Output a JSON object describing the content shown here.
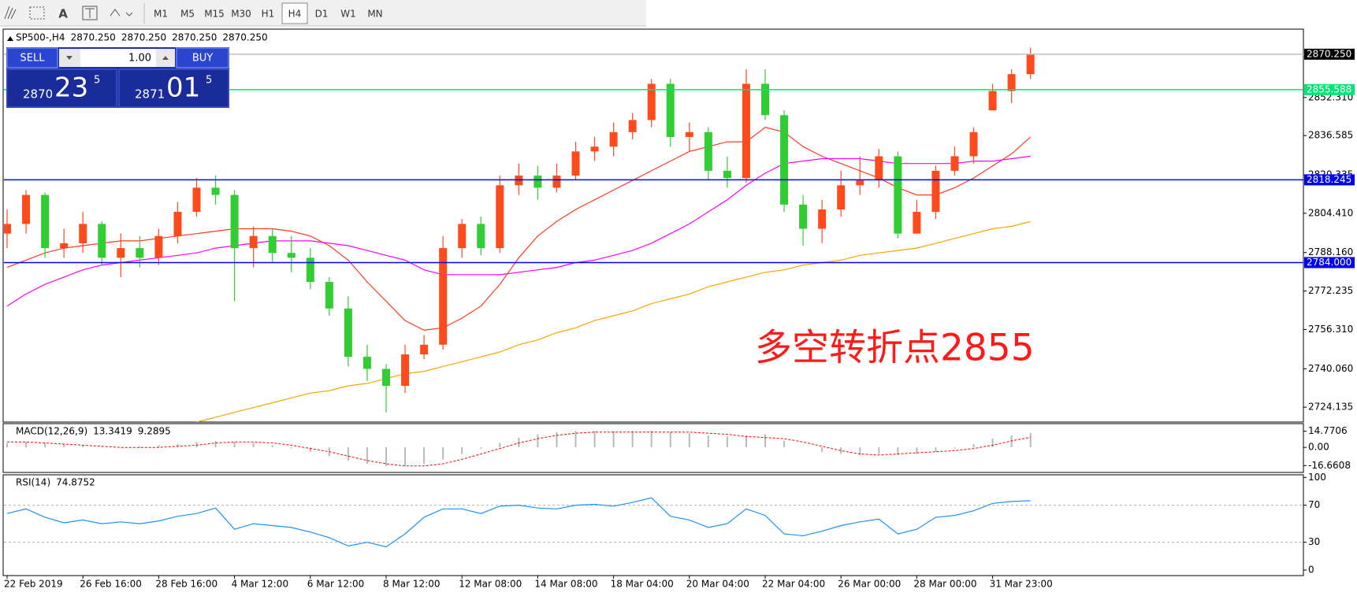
{
  "toolbar": {
    "text_tool": "A",
    "timeframes": [
      "M1",
      "M5",
      "M15",
      "M30",
      "H1",
      "H4",
      "D1",
      "W1",
      "MN"
    ],
    "active": "H4"
  },
  "trade_panel": {
    "sell_label": "SELL",
    "buy_label": "BUY",
    "lot": "1.00",
    "sell_price": [
      "2870",
      "23",
      "5"
    ],
    "buy_price": [
      "2871",
      "01",
      "5"
    ]
  },
  "chart_data": [
    {
      "type": "candlestick",
      "title": "SP500-,H4",
      "header_values": [
        "2870.250",
        "2870.250",
        "2870.250",
        "2870.250"
      ],
      "categories": [
        "22 Feb 2019",
        null,
        null,
        null,
        "26 Feb 16:00",
        null,
        null,
        null,
        "28 Feb 16:00",
        null,
        null,
        null,
        "4 Mar 12:00",
        null,
        null,
        null,
        "6 Mar 12:00",
        null,
        null,
        null,
        "8 Mar 12:00",
        null,
        null,
        null,
        "12 Mar 08:00",
        null,
        null,
        null,
        "14 Mar 08:00",
        null,
        null,
        null,
        "18 Mar 04:00",
        null,
        null,
        null,
        "20 Mar 04:00",
        null,
        null,
        null,
        "22 Mar 04:00",
        null,
        null,
        null,
        "26 Mar 00:00",
        null,
        null,
        null,
        "28 Mar 00:00",
        null,
        null,
        null,
        "31 Mar 23:00",
        null,
        null
      ],
      "open": [
        2796,
        2800,
        2812,
        2790,
        2792,
        2800,
        2786,
        2790,
        2786,
        2795,
        2805,
        2815,
        2812,
        2790,
        2795,
        2788,
        2786,
        2776,
        2765,
        2745,
        2740,
        2733,
        2746,
        2750,
        2790,
        2800,
        2790,
        2816,
        2820,
        2815,
        2820,
        2830,
        2832,
        2838,
        2843,
        2858,
        2836,
        2838,
        2822,
        2819,
        2858,
        2845,
        2808,
        2798,
        2806,
        2816,
        2818,
        2828,
        2796,
        2805,
        2822,
        2828,
        2847,
        2855,
        2862
      ],
      "high": [
        2806,
        2814,
        2813,
        2798,
        2805,
        2801,
        2796,
        2795,
        2798,
        2809,
        2819,
        2820,
        2814,
        2799,
        2798,
        2795,
        2790,
        2778,
        2770,
        2750,
        2742,
        2750,
        2754,
        2795,
        2802,
        2803,
        2820,
        2825,
        2824,
        2825,
        2834,
        2836,
        2842,
        2846,
        2860,
        2860,
        2842,
        2840,
        2828,
        2864,
        2864,
        2847,
        2812,
        2810,
        2822,
        2828,
        2831,
        2830,
        2810,
        2824,
        2832,
        2840,
        2858,
        2864,
        2873
      ],
      "low": [
        2790,
        2796,
        2786,
        2786,
        2788,
        2783,
        2778,
        2782,
        2783,
        2792,
        2803,
        2808,
        2768,
        2782,
        2784,
        2780,
        2773,
        2762,
        2741,
        2735,
        2722,
        2730,
        2744,
        2748,
        2786,
        2787,
        2788,
        2812,
        2810,
        2813,
        2818,
        2826,
        2828,
        2835,
        2840,
        2832,
        2830,
        2818,
        2815,
        2817,
        2843,
        2805,
        2791,
        2792,
        2803,
        2812,
        2815,
        2794,
        2796,
        2802,
        2820,
        2825,
        2848,
        2850,
        2860
      ],
      "close": [
        2800,
        2812,
        2790,
        2792,
        2800,
        2786,
        2790,
        2786,
        2795,
        2805,
        2815,
        2812,
        2790,
        2795,
        2788,
        2786,
        2776,
        2765,
        2745,
        2740,
        2733,
        2746,
        2750,
        2790,
        2800,
        2790,
        2816,
        2820,
        2815,
        2820,
        2830,
        2832,
        2838,
        2843,
        2858,
        2836,
        2838,
        2822,
        2819,
        2858,
        2845,
        2808,
        2798,
        2806,
        2816,
        2818,
        2828,
        2796,
        2805,
        2822,
        2828,
        2838,
        2855,
        2862,
        2870.25
      ],
      "up_color": "#ff4a1c",
      "down_color": "#32cd32",
      "overlays": [
        {
          "color": "#ff3b1f",
          "values": [
            2782,
            2785,
            2788,
            2790,
            2791,
            2792,
            2793,
            2793,
            2794,
            2795,
            2796,
            2797,
            2798,
            2798,
            2798,
            2797,
            2795,
            2791,
            2785,
            2776,
            2768,
            2760,
            2756,
            2757,
            2761,
            2766,
            2775,
            2786,
            2795,
            2801,
            2806,
            2810,
            2814,
            2818,
            2822,
            2826,
            2830,
            2832,
            2834,
            2834,
            2840,
            2838,
            2832,
            2828,
            2825,
            2822,
            2819,
            2815,
            2812,
            2812,
            2815,
            2819,
            2824,
            2829,
            2836
          ]
        },
        {
          "color": "#ff00ff",
          "values": [
            2766,
            2771,
            2775,
            2778,
            2781,
            2783,
            2784,
            2785,
            2786,
            2787,
            2788,
            2790,
            2791,
            2792,
            2793,
            2793,
            2793,
            2792,
            2791,
            2789,
            2787,
            2785,
            2781,
            2779,
            2779,
            2779,
            2779,
            2780,
            2781,
            2782,
            2784,
            2785,
            2787,
            2789,
            2792,
            2796,
            2800,
            2805,
            2810,
            2816,
            2821,
            2825,
            2826,
            2827,
            2827,
            2827,
            2826,
            2825,
            2825,
            2825,
            2825,
            2826,
            2826,
            2827,
            2828
          ]
        },
        {
          "color": "#ffa500",
          "values": [
            null,
            null,
            null,
            null,
            null,
            null,
            null,
            null,
            null,
            null,
            2718,
            2720,
            2722,
            2724,
            2726,
            2728,
            2730,
            2731,
            2733,
            2734,
            2736,
            2738,
            2739,
            2741,
            2743,
            2745,
            2747,
            2750,
            2752,
            2755,
            2757,
            2760,
            2762,
            2764,
            2767,
            2769,
            2771,
            2774,
            2776,
            2778,
            2780,
            2781,
            2783,
            2784,
            2785,
            2787,
            2788,
            2789,
            2790,
            2792,
            2794,
            2796,
            2798,
            2799,
            2801
          ]
        }
      ],
      "levels": [
        {
          "value": 2870.25,
          "label": "2870.250",
          "color": "#c0c0c0",
          "label_color": "#000000"
        },
        {
          "value": 2855.588,
          "label": "2855.588",
          "color": "#00e676",
          "label_color": "#00e676"
        },
        {
          "value": 2818.245,
          "label": "2818.245",
          "color": "#0000ff",
          "label_color": "#0000ff"
        },
        {
          "value": 2784.0,
          "label": "2784.000",
          "color": "#0000ff",
          "label_color": "#0000ff"
        }
      ],
      "annotation": {
        "text": "多空转折点2855",
        "color": "#ff1a1a"
      },
      "ylim": [
        2718,
        2880.3
      ],
      "yticks": [
        {
          "value": 2852.31,
          "label": "2852.310"
        },
        {
          "value": 2836.585,
          "label": "2836.585"
        },
        {
          "value": 2820.335,
          "label": "2820.335"
        },
        {
          "value": 2804.41,
          "label": "2804.410"
        },
        {
          "value": 2788.16,
          "label": "2788.160"
        },
        {
          "value": 2772.235,
          "label": "2772.235"
        },
        {
          "value": 2756.31,
          "label": "2756.310"
        },
        {
          "value": 2740.06,
          "label": "2740.060"
        },
        {
          "value": 2724.135,
          "label": "2724.135"
        }
      ],
      "grid": false
    },
    {
      "type": "macd",
      "title": "MACD(12,26,9)",
      "header_values": [
        13.3419,
        9.2895
      ],
      "histogram": [
        4,
        5,
        4,
        3,
        2,
        1,
        0,
        1,
        2,
        3,
        5,
        6,
        5,
        4,
        2,
        -1,
        -4,
        -8,
        -12,
        -15,
        -17,
        -17,
        -15,
        -11,
        -6,
        -1,
        4,
        9,
        12,
        14,
        15,
        15,
        15,
        15,
        15,
        14,
        13,
        11,
        10,
        11,
        12,
        6,
        0,
        -4,
        -6,
        -7,
        -6,
        -7,
        -6,
        -4,
        -1,
        3,
        8,
        11,
        13.3419
      ],
      "signal": [
        5,
        5,
        4,
        3,
        2,
        1,
        0,
        0,
        0,
        1,
        2,
        4,
        5,
        5,
        4,
        2,
        -1,
        -4,
        -8,
        -12,
        -15,
        -17,
        -17,
        -15,
        -11,
        -6,
        -1,
        4,
        8,
        11,
        13,
        14,
        14,
        14,
        14,
        14,
        14,
        13,
        12,
        10,
        9,
        8,
        5,
        1,
        -3,
        -6,
        -7,
        -6,
        -5,
        -4,
        -3,
        -1,
        2,
        6,
        9.2895
      ],
      "hist_color": "#b8b8b8",
      "signal_color": "#ff0000",
      "ylim": [
        -22.95,
        21.06
      ],
      "yticks": [
        14.7706,
        {
          "value": 0,
          "label": "0.00"
        },
        -16.6608
      ]
    },
    {
      "type": "rsi",
      "title": "RSI(14)",
      "header_values": [
        74.8752
      ],
      "values": [
        61,
        66,
        57,
        51,
        54,
        50,
        52,
        50,
        53,
        58,
        61,
        67,
        44,
        50,
        48,
        46,
        41,
        35,
        26,
        30,
        25,
        39,
        57,
        66,
        66,
        61,
        69,
        70,
        67,
        66,
        70,
        71,
        69,
        73,
        78,
        58,
        54,
        46,
        50,
        66,
        59,
        39,
        37,
        42,
        48,
        52,
        55,
        39,
        44,
        57,
        59,
        64,
        72,
        74,
        74.8752
      ],
      "color": "#1e90ff",
      "ylim": [
        -6,
        102
      ],
      "yticks": [
        100,
        70,
        30,
        0
      ],
      "level_lines": [
        70,
        30
      ]
    }
  ]
}
